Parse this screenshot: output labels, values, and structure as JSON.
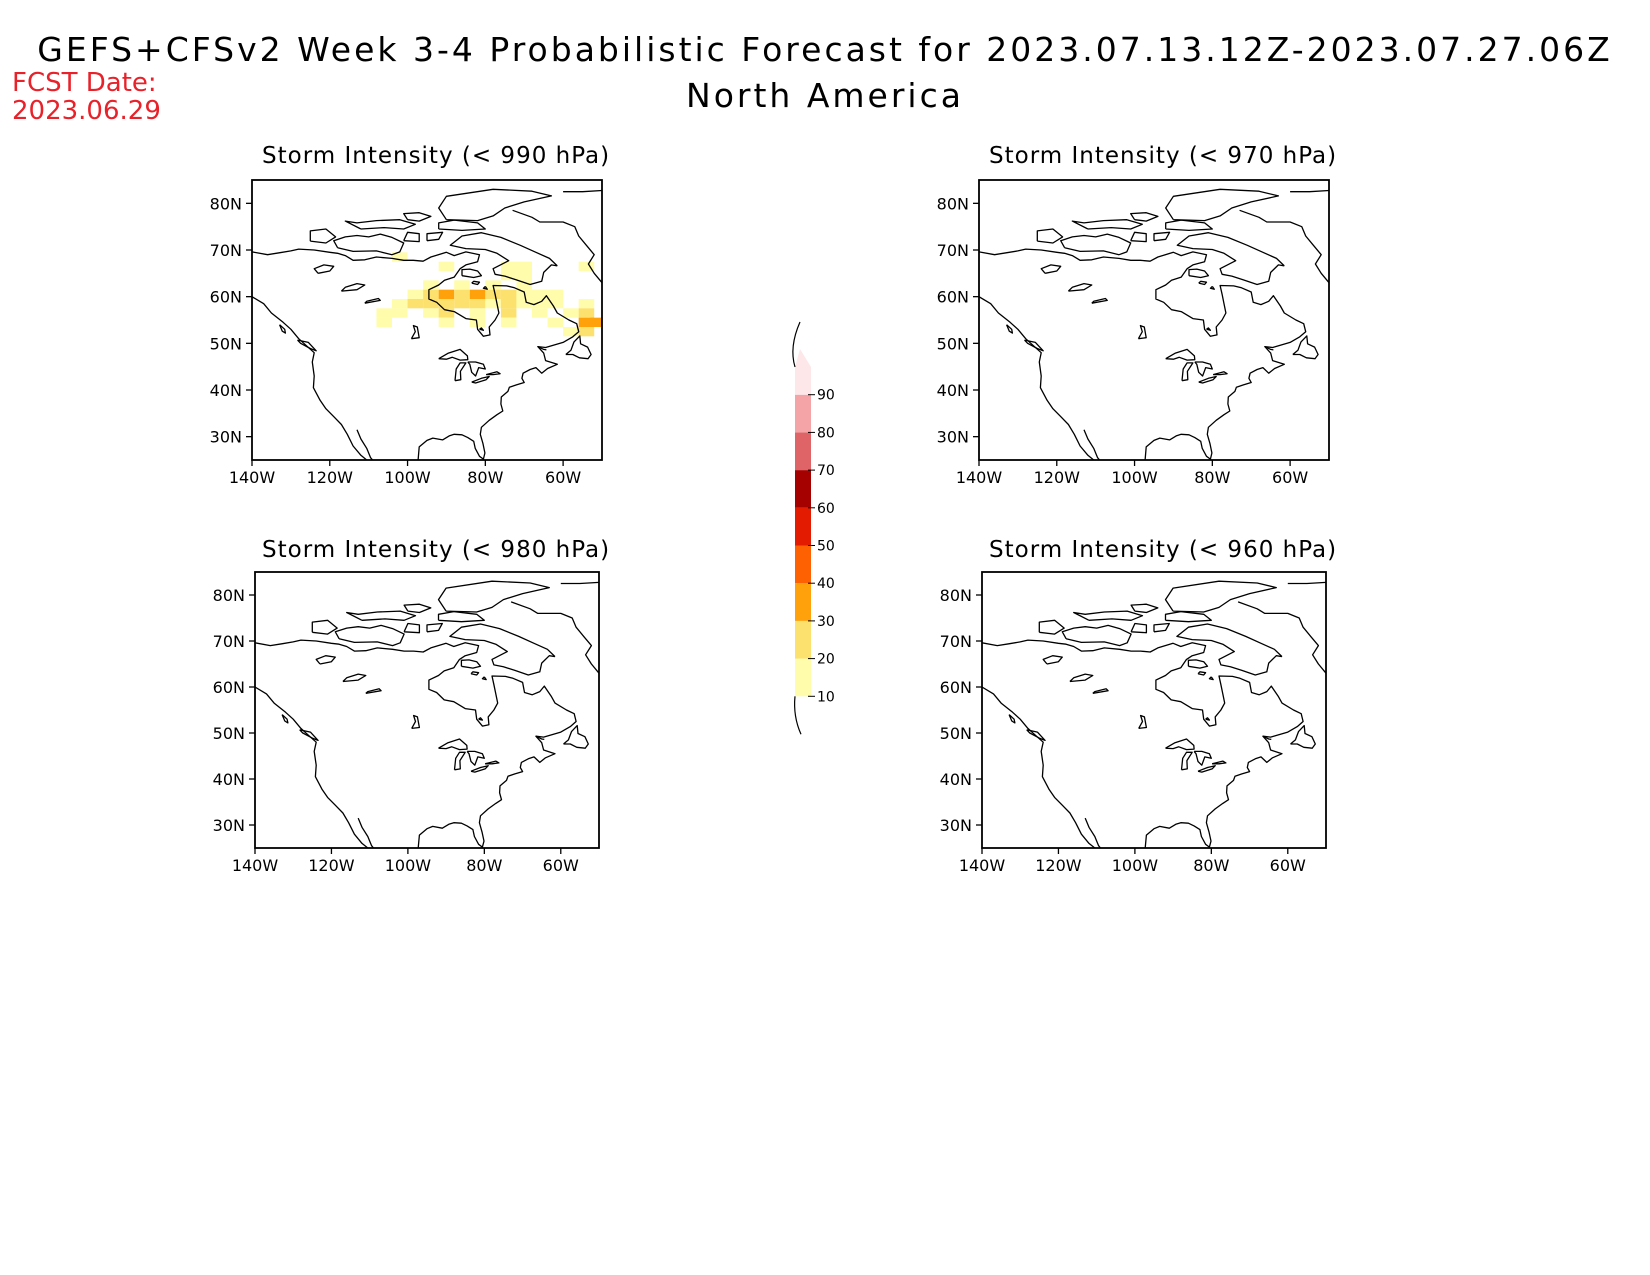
{
  "header": {
    "title": "GEFS+CFSv2 Week 3-4 Probabilistic Forecast for 2023.07.13.12Z-2023.07.27.06Z",
    "subtitle": "North America",
    "fcst_label": "FCST Date:",
    "fcst_date": "2023.06.29"
  },
  "map": {
    "lon_range": [
      -140,
      -50
    ],
    "lat_range": [
      25,
      85
    ],
    "lon_ticks": [
      "140W",
      "120W",
      "100W",
      "80W",
      "60W"
    ],
    "lat_ticks": [
      "30N",
      "40N",
      "50N",
      "60N",
      "70N",
      "80N"
    ]
  },
  "panels": [
    {
      "title": "Storm Intensity (< 990 hPa)",
      "has_probability_shading": true
    },
    {
      "title": "Storm Intensity (< 970 hPa)",
      "has_probability_shading": false
    },
    {
      "title": "Storm Intensity (< 980 hPa)",
      "has_probability_shading": false
    },
    {
      "title": "Storm Intensity (< 960 hPa)",
      "has_probability_shading": false
    }
  ],
  "colorbar": {
    "labels": [
      "10",
      "20",
      "30",
      "40",
      "50",
      "60",
      "70",
      "80",
      "90"
    ],
    "colors": [
      "#fffcab",
      "#fde16e",
      "#fea10b",
      "#fd6101",
      "#e21b01",
      "#a50101",
      "#df6467",
      "#f4a4a6",
      "#fde7e9"
    ]
  },
  "shading_990": [
    {
      "lon": -98,
      "lat": 60.5,
      "prob": 10
    },
    {
      "lon": -94,
      "lat": 60.5,
      "prob": 20
    },
    {
      "lon": -90,
      "lat": 60.5,
      "prob": 30
    },
    {
      "lon": -86,
      "lat": 60.5,
      "prob": 20
    },
    {
      "lon": -82,
      "lat": 60.5,
      "prob": 30
    },
    {
      "lon": -78,
      "lat": 60.5,
      "prob": 20
    },
    {
      "lon": -74,
      "lat": 60.5,
      "prob": 20
    },
    {
      "lon": -70,
      "lat": 60.5,
      "prob": 10
    },
    {
      "lon": -66,
      "lat": 60.5,
      "prob": 10
    },
    {
      "lon": -62,
      "lat": 60.5,
      "prob": 10
    },
    {
      "lon": -102,
      "lat": 58.5,
      "prob": 10
    },
    {
      "lon": -98,
      "lat": 58.5,
      "prob": 20
    },
    {
      "lon": -94,
      "lat": 58.5,
      "prob": 20
    },
    {
      "lon": -90,
      "lat": 58.5,
      "prob": 20
    },
    {
      "lon": -86,
      "lat": 58.5,
      "prob": 20
    },
    {
      "lon": -82,
      "lat": 58.5,
      "prob": 20
    },
    {
      "lon": -78,
      "lat": 58.5,
      "prob": 10
    },
    {
      "lon": -74,
      "lat": 58.5,
      "prob": 20
    },
    {
      "lon": -70,
      "lat": 58.5,
      "prob": 10
    },
    {
      "lon": -66,
      "lat": 58.5,
      "prob": 10
    },
    {
      "lon": -62,
      "lat": 58.5,
      "prob": 10
    },
    {
      "lon": -54,
      "lat": 58.5,
      "prob": 10
    },
    {
      "lon": -106,
      "lat": 56.5,
      "prob": 10
    },
    {
      "lon": -102,
      "lat": 56.5,
      "prob": 10
    },
    {
      "lon": -94,
      "lat": 56.5,
      "prob": 10
    },
    {
      "lon": -90,
      "lat": 56.5,
      "prob": 20
    },
    {
      "lon": -82,
      "lat": 56.5,
      "prob": 10
    },
    {
      "lon": -74,
      "lat": 56.5,
      "prob": 20
    },
    {
      "lon": -66,
      "lat": 56.5,
      "prob": 10
    },
    {
      "lon": -58,
      "lat": 56.5,
      "prob": 10
    },
    {
      "lon": -54,
      "lat": 56.5,
      "prob": 20
    },
    {
      "lon": -106,
      "lat": 54.5,
      "prob": 10
    },
    {
      "lon": -90,
      "lat": 54.5,
      "prob": 10
    },
    {
      "lon": -82,
      "lat": 54.5,
      "prob": 10
    },
    {
      "lon": -74,
      "lat": 54.5,
      "prob": 10
    },
    {
      "lon": -62,
      "lat": 54.5,
      "prob": 10
    },
    {
      "lon": -54,
      "lat": 54.5,
      "prob": 30
    },
    {
      "lon": -51,
      "lat": 54.5,
      "prob": 30
    },
    {
      "lon": -58,
      "lat": 52.5,
      "prob": 10
    },
    {
      "lon": -54,
      "lat": 52.5,
      "prob": 20
    },
    {
      "lon": -94,
      "lat": 62.5,
      "prob": 10
    },
    {
      "lon": -86,
      "lat": 62.5,
      "prob": 10
    },
    {
      "lon": -78,
      "lat": 62.5,
      "prob": 10
    },
    {
      "lon": -70,
      "lat": 62.5,
      "prob": 10
    },
    {
      "lon": -74,
      "lat": 64.5,
      "prob": 10
    },
    {
      "lon": -70,
      "lat": 64.5,
      "prob": 10
    },
    {
      "lon": -90,
      "lat": 66.5,
      "prob": 10
    },
    {
      "lon": -74,
      "lat": 66.5,
      "prob": 10
    },
    {
      "lon": -70,
      "lat": 66.5,
      "prob": 10
    },
    {
      "lon": -102,
      "lat": 68.5,
      "prob": 10
    },
    {
      "lon": -54,
      "lat": 66.5,
      "prob": 10
    }
  ]
}
